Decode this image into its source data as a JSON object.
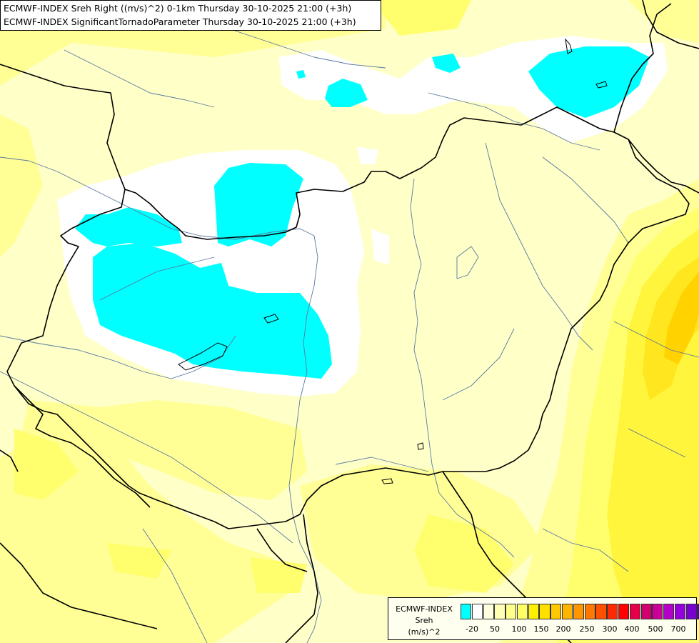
{
  "title": {
    "line1": "ECMWF-INDEX Sreh Right ((m/s)^2) 0-1km Thursday 30-10-2025 21:00 (+3h)",
    "line2": "ECMWF-INDEX SignificantTornadoParameter Thursday 30-10-2025 21:00 (+3h)"
  },
  "legend": {
    "line1": "ECMWF-INDEX",
    "line2": "Sreh",
    "line3": "(m/s)^2",
    "colors": [
      "#00ffff",
      "#ffffff",
      "#ffffe0",
      "#ffffb4",
      "#ffff8c",
      "#ffff64",
      "#fff000",
      "#ffe000",
      "#ffc800",
      "#ffb400",
      "#ff9600",
      "#ff7800",
      "#ff5000",
      "#ff2800",
      "#ff0000",
      "#e6004a",
      "#d2006e",
      "#c80096",
      "#b400c8",
      "#9600dc",
      "#7800d2",
      "#5000b4",
      "#2800a0",
      "#000080"
    ],
    "tick_labels": [
      "-20",
      "50",
      "100",
      "150",
      "200",
      "250",
      "300",
      "400",
      "500",
      "700"
    ]
  },
  "map": {
    "colors": {
      "base": "#ffffc8",
      "pale": "#ffffe6",
      "yellow_light": "#ffff96",
      "yellow": "#ffff6e",
      "yellow_mid": "#fff53c",
      "yellow_strong": "#ffe61e",
      "orange": "#ffd200",
      "white": "#ffffff",
      "cyan": "#00ffff",
      "border": "#000000",
      "river": "#5a78a0"
    }
  }
}
